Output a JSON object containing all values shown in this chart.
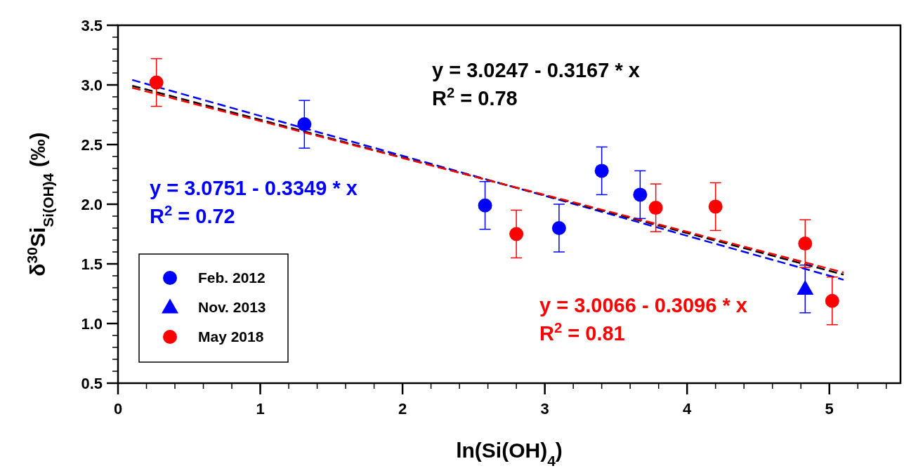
{
  "chart_data": {
    "type": "scatter",
    "xlabel": "ln(Si(OH)$_{4}$)",
    "ylabel": "δ$^{30}$Si$_{Si(OH)4}$ (‰)",
    "xlim": [
      0,
      5.5
    ],
    "xticks": [
      0,
      1,
      2,
      3,
      4,
      5
    ],
    "ylim": [
      0.5,
      3.5
    ],
    "yticks": [
      {
        "value": 0.5,
        "label": "0.5"
      },
      {
        "value": 1,
        "label": "1.0"
      },
      {
        "value": 1.5,
        "label": "1.5"
      },
      {
        "value": 2,
        "label": "2.0"
      },
      {
        "value": 2.5,
        "label": "2.5"
      },
      {
        "value": 3,
        "label": "3.0"
      },
      {
        "value": 3.5,
        "label": "3.5"
      }
    ],
    "grid": false,
    "legend": "bottom left",
    "series": [
      {
        "name": "Feb. 2012",
        "color": "#0000ff",
        "marker": "circle",
        "x": [
          1.31,
          2.58,
          3.1,
          3.4,
          3.67
        ],
        "values": [
          2.67,
          1.99,
          1.8,
          2.28,
          2.08
        ],
        "errors": [
          0.2,
          0.2,
          0.2,
          0.2,
          0.2
        ]
      },
      {
        "name": "Nov. 2013",
        "color": "#0000ff",
        "marker": "triangle",
        "x": [
          4.83
        ],
        "values": [
          1.29
        ],
        "errors": [
          0.2
        ]
      },
      {
        "name": "May 2018",
        "color": "#ff0000",
        "marker": "circle",
        "x": [
          0.27,
          2.8,
          3.78,
          4.2,
          4.83,
          5.02
        ],
        "values": [
          3.02,
          1.75,
          1.97,
          1.98,
          1.67,
          1.19
        ],
        "errors": [
          0.2,
          0.2,
          0.2,
          0.2,
          0.2,
          0.2
        ]
      },
      {
        "type": "line",
        "color": "#0000ff",
        "line_style": "dashed",
        "marker": "none",
        "x": [
          0.1,
          5.1
        ],
        "values": [
          3.042,
          1.367
        ]
      },
      {
        "type": "line",
        "color": "#000000",
        "line_style": "dashed",
        "marker": "none",
        "x": [
          0.1,
          5.1
        ],
        "values": [
          2.993,
          1.41
        ]
      },
      {
        "type": "line",
        "color": "#ff0000",
        "line_style": "dashed",
        "marker": "none",
        "x": [
          0.1,
          5.1
        ],
        "values": [
          2.976,
          1.428
        ]
      }
    ],
    "annotations": [
      "y = 3.0751 - 0.3349 * x",
      "R$^{2}$ = 0.72",
      "y = 3.0247 - 0.3167 * x",
      "R$^{2}$ = 0.78",
      "y = 3.0066 - 0.3096 * x",
      "R$^{2}$ = 0.81"
    ]
  }
}
